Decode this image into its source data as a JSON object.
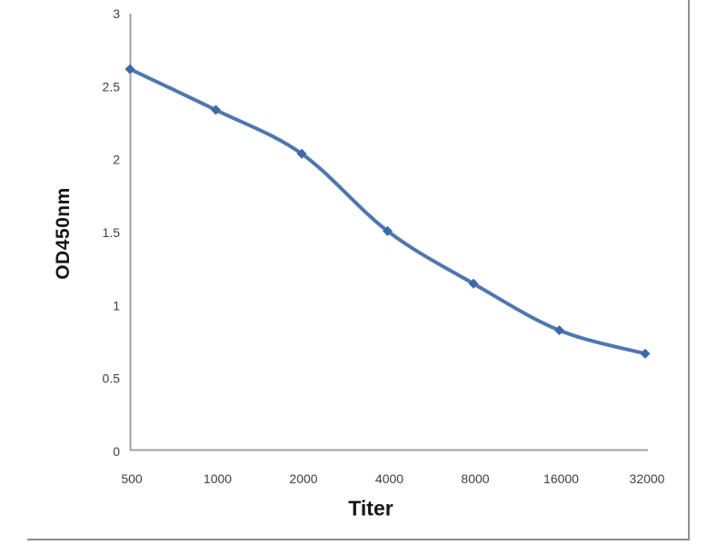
{
  "chart_data": {
    "type": "line",
    "title": "",
    "xlabel": "Titer",
    "ylabel": "OD450nm",
    "categories": [
      "500",
      "1000",
      "2000",
      "4000",
      "8000",
      "16000",
      "32000"
    ],
    "series": [
      {
        "name": "OD450nm",
        "values": [
          2.62,
          2.34,
          2.04,
          1.51,
          1.15,
          0.83,
          0.67
        ]
      }
    ],
    "y_ticks": [
      "0",
      "0.5",
      "1",
      "1.5",
      "2",
      "2.5",
      "3"
    ],
    "ylim": [
      0,
      3
    ],
    "grid": false,
    "legend": "none",
    "line_style": "smooth",
    "marker": "diamond",
    "colors": {
      "line": "#4e76b2",
      "marker": "#3c68ac",
      "axis": "#a0a0a0",
      "tick_label": "#3f3f3f",
      "axis_title": "#161616",
      "background": "#ffffff",
      "image_border": "#8f8f8f"
    }
  }
}
